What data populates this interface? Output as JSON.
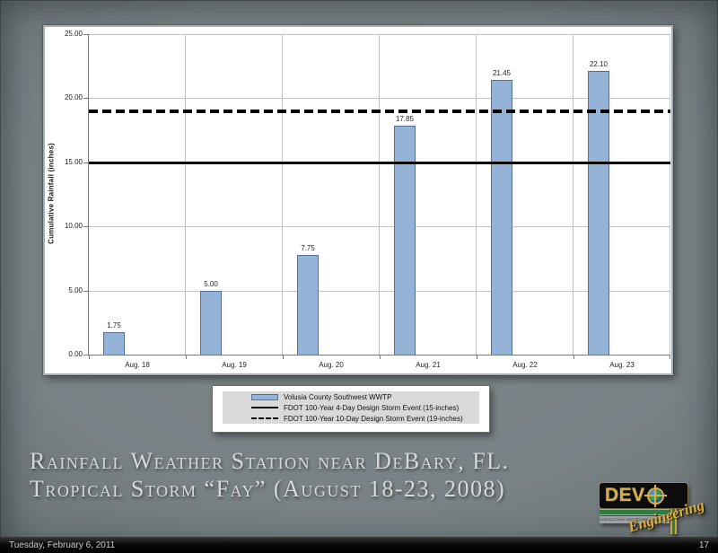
{
  "slide": {
    "title_line1": "Rainfall Weather Station near DeBary, FL.",
    "title_line2": "Tropical Storm “Fay” (August 18-23, 2008)",
    "footer": {
      "date": "Tuesday, February 6, 2011",
      "page_number": "17"
    }
  },
  "logo": {
    "name_prefix": "DEV",
    "script": "Engineering",
    "tagline": "CONSULTING GEOTECHNICAL ENGINEERS",
    "globe_icon": "globe-crosshair",
    "colors": {
      "gold": "#D9AD3E",
      "green": "#2E7D46",
      "box_black": "#0C0C0C"
    }
  },
  "chart_data": {
    "type": "bar",
    "title": "",
    "categories": [
      "Aug. 18",
      "Aug. 19",
      "Aug. 20",
      "Aug. 21",
      "Aug. 22",
      "Aug. 23"
    ],
    "series": [
      {
        "name": "Volusia County Southwest WWTP",
        "type": "bar",
        "values": [
          1.75,
          5.0,
          7.75,
          17.85,
          21.45,
          22.1
        ],
        "labels": [
          "1.75",
          "5.00",
          "7.75",
          "17.85",
          "21.45",
          "22.10"
        ],
        "fill": "#95B3D7",
        "border": "#54719E"
      },
      {
        "name": "FDOT 100-Year 4-Day Design Storm Event (15-inches)",
        "type": "line-solid",
        "value": 15,
        "color": "#000000"
      },
      {
        "name": "FDOT 100-Year 10-Day Design Storm Event (19-inches)",
        "type": "line-dashed",
        "value": 19,
        "color": "#000000"
      }
    ],
    "xlabel": "",
    "ylabel": "Cumulative Rainfall (inches)",
    "ylim": [
      0,
      25
    ],
    "ytick_interval": 5,
    "yticks": [
      "0.00",
      "5.00",
      "10.00",
      "15.00",
      "20.00",
      "25.00"
    ],
    "grid": true,
    "legend_position": "below-chart"
  }
}
